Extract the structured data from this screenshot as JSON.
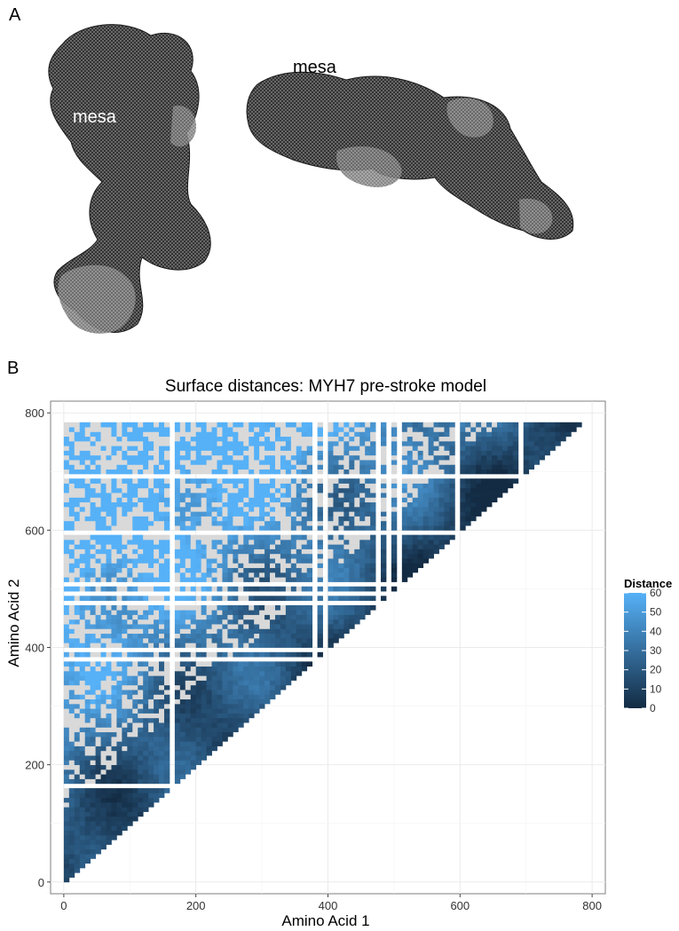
{
  "panel_a": {
    "letter": "A",
    "label_left": "mesa",
    "label_right": "mesa"
  },
  "panel_b": {
    "letter": "B"
  },
  "chart_data": {
    "type": "heatmap",
    "title": "Surface distances: MYH7 pre-stroke model",
    "xlabel": "Amino Acid 1",
    "ylabel": "Amino Acid 2",
    "xlim": [
      -20,
      820
    ],
    "ylim": [
      -20,
      820
    ],
    "x_ticks": [
      0,
      200,
      400,
      600,
      800
    ],
    "y_ticks": [
      0,
      200,
      400,
      600,
      800
    ],
    "n_residues": 782,
    "grid": true,
    "legend": {
      "title": "Distance",
      "placement": "right",
      "ticks": [
        60,
        50,
        40,
        30,
        20,
        10,
        0
      ],
      "range": [
        0,
        60
      ],
      "low_color": "#132b43",
      "high_color": "#56b1f7"
    },
    "missing_color": "#d9d9d9",
    "panel_background": "#ffffff",
    "grid_color": "#ebebeb"
  }
}
